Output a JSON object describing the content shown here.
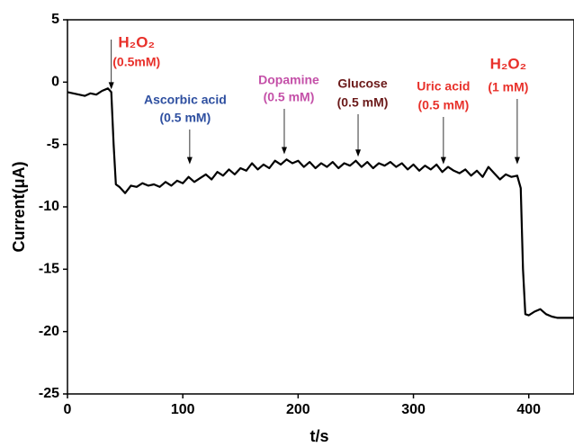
{
  "chart_data": {
    "type": "line",
    "xlabel": "t/s",
    "ylabel": "Current(μA)",
    "xlim": [
      0,
      440
    ],
    "ylim": [
      -25,
      5
    ],
    "xticks": [
      0,
      100,
      200,
      300,
      400
    ],
    "yticks": [
      -25,
      -20,
      -15,
      -10,
      -5,
      0,
      5
    ],
    "grid": false,
    "series": [
      {
        "color": "#000000",
        "x": [
          0,
          5,
          10,
          15,
          20,
          25,
          30,
          35,
          38,
          40,
          42,
          45,
          50,
          55,
          60,
          65,
          70,
          75,
          80,
          85,
          90,
          95,
          100,
          105,
          110,
          115,
          120,
          125,
          130,
          135,
          140,
          145,
          150,
          155,
          160,
          165,
          170,
          175,
          180,
          185,
          190,
          195,
          200,
          205,
          210,
          215,
          220,
          225,
          230,
          235,
          240,
          245,
          250,
          255,
          260,
          265,
          270,
          275,
          280,
          285,
          290,
          295,
          300,
          305,
          310,
          315,
          320,
          325,
          330,
          335,
          340,
          345,
          350,
          355,
          360,
          365,
          370,
          375,
          380,
          385,
          390,
          393,
          395,
          397,
          400,
          405,
          410,
          415,
          420,
          425,
          440
        ],
        "values": [
          -0.8,
          -0.9,
          -1.0,
          -1.1,
          -0.9,
          -1.0,
          -0.7,
          -0.5,
          -0.8,
          -5.0,
          -8.2,
          -8.4,
          -8.9,
          -8.3,
          -8.4,
          -8.1,
          -8.3,
          -8.2,
          -8.4,
          -8.0,
          -8.3,
          -7.9,
          -8.1,
          -7.6,
          -8.0,
          -7.7,
          -7.4,
          -7.8,
          -7.2,
          -7.5,
          -7.0,
          -7.4,
          -6.9,
          -7.1,
          -6.5,
          -7.0,
          -6.6,
          -6.9,
          -6.3,
          -6.6,
          -6.2,
          -6.5,
          -6.3,
          -6.8,
          -6.4,
          -6.9,
          -6.5,
          -6.8,
          -6.4,
          -6.9,
          -6.5,
          -6.7,
          -6.3,
          -6.8,
          -6.4,
          -6.9,
          -6.5,
          -6.7,
          -6.4,
          -6.8,
          -6.5,
          -7.0,
          -6.6,
          -7.1,
          -6.7,
          -7.0,
          -6.6,
          -7.2,
          -6.8,
          -7.1,
          -7.3,
          -7.0,
          -7.5,
          -7.1,
          -7.6,
          -6.8,
          -7.3,
          -7.8,
          -7.4,
          -7.6,
          -7.5,
          -8.5,
          -15.0,
          -18.6,
          -18.7,
          -18.4,
          -18.2,
          -18.6,
          -18.8,
          -18.9,
          -18.9
        ]
      }
    ],
    "annotations": [
      {
        "lines": [
          "H₂O₂",
          "(0.5mM)"
        ],
        "color": "#e8302a",
        "x": 38,
        "y": -0.8
      },
      {
        "lines": [
          "Ascorbic acid",
          "(0.5 mM)"
        ],
        "color": "#2e4fa0",
        "x": 106,
        "y": -6.8
      },
      {
        "lines": [
          "Dopamine",
          "(0.5 mM)"
        ],
        "color": "#c450a8",
        "x": 188,
        "y": -6.0
      },
      {
        "lines": [
          "Glucose",
          "(0.5 mM)"
        ],
        "color": "#6b1a1a",
        "x": 252,
        "y": -6.2
      },
      {
        "lines": [
          "Uric acid",
          "(0.5 mM)"
        ],
        "color": "#e8302a",
        "x": 326,
        "y": -6.8
      },
      {
        "lines": [
          "H₂O₂",
          "(1 mM)"
        ],
        "color": "#e8302a",
        "x": 390,
        "y": -6.8
      }
    ]
  }
}
